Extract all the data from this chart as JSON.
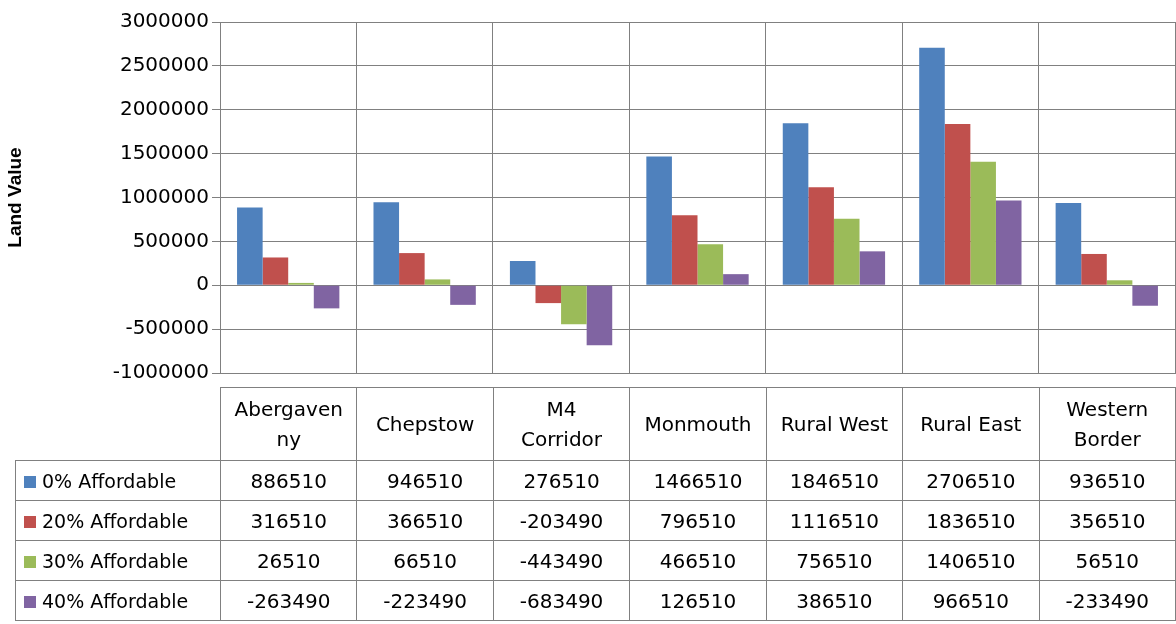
{
  "chart_data": {
    "type": "bar",
    "ylabel": "Land Value",
    "categories": [
      "Abergavenny",
      "Chepstow",
      "M4 Corridor",
      "Monmouth",
      "Rural West",
      "Rural East",
      "Western Border"
    ],
    "series": [
      {
        "name": "0% Affordable",
        "color": "#4f81bd",
        "values": [
          886510,
          946510,
          276510,
          1466510,
          1846510,
          2706510,
          936510
        ]
      },
      {
        "name": "20% Affordable",
        "color": "#c0504d",
        "values": [
          316510,
          366510,
          -203490,
          796510,
          1116510,
          1836510,
          356510
        ]
      },
      {
        "name": "30% Affordable",
        "color": "#9bbb59",
        "values": [
          26510,
          66510,
          -443490,
          466510,
          756510,
          1406510,
          56510
        ]
      },
      {
        "name": "40% Affordable",
        "color": "#8064a2",
        "values": [
          -263490,
          -223490,
          -683490,
          126510,
          386510,
          966510,
          -233490
        ]
      }
    ],
    "ylim": [
      -1000000,
      3000000
    ],
    "yticks": [
      -1000000,
      -500000,
      0,
      500000,
      1000000,
      1500000,
      2000000,
      2500000,
      3000000
    ],
    "grid": true,
    "data_labels": true,
    "legend": "bottom"
  }
}
